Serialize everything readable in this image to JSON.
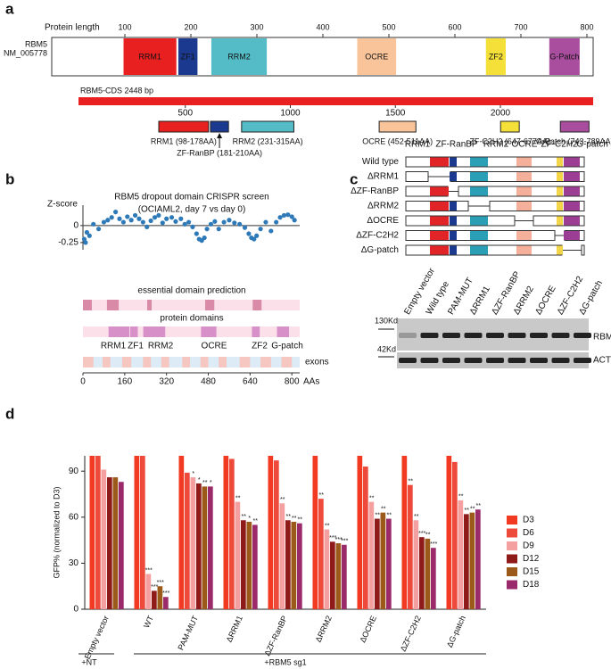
{
  "panel_labels": [
    "a",
    "b",
    "c",
    "d"
  ],
  "panel_a": {
    "axis_label": "Protein length",
    "ticks": [
      100,
      200,
      300,
      400,
      500,
      600,
      700,
      800
    ],
    "gene": "RBM5",
    "accession": "NM_005778",
    "cds_label": "RBM5-CDS  2448 bp",
    "cds_ticks": [
      500,
      1000,
      1500,
      2000
    ],
    "domains": [
      {
        "short": "RRM1",
        "label": "RRM1 (98-178AA)",
        "start": 98,
        "end": 178,
        "color": "#e8201f"
      },
      {
        "short": "ZF1",
        "label": "ZF-RanBP (181-210AA)",
        "start": 181,
        "end": 210,
        "color": "#1b3a8f"
      },
      {
        "short": "RRM2",
        "label": "RRM2 (231-315AA)",
        "start": 231,
        "end": 315,
        "color": "#54bcc6"
      },
      {
        "short": "OCRE",
        "label": "OCRE (452-511AA)",
        "start": 452,
        "end": 511,
        "color": "#f9c49a"
      },
      {
        "short": "ZF2",
        "label": "ZF-C2H2 (647-677AA)",
        "start": 647,
        "end": 677,
        "color": "#f5e03a"
      },
      {
        "short": "G-Patch",
        "label": "G-Patch (743-789AA)",
        "start": 743,
        "end": 789,
        "color": "#a94d9e"
      }
    ]
  },
  "panel_c": {
    "domain_headers": [
      "RRM1",
      "ZF-RanBP",
      "RRM2",
      "OCRE",
      "ZF-C2H2",
      "G-patch"
    ],
    "domain_colors": [
      "#e02428",
      "#1b3a8f",
      "#2a9fb5",
      "#f4b09a",
      "#f3d54a",
      "#9b3e94"
    ],
    "constructs": [
      {
        "name": "Wild type",
        "deleted": null
      },
      {
        "name": "ΔRRM1",
        "deleted": 0
      },
      {
        "name": "ΔZF-RanBP",
        "deleted": 1
      },
      {
        "name": "ΔRRM2",
        "deleted": 2
      },
      {
        "name": "ΔOCRE",
        "deleted": 3
      },
      {
        "name": "ΔZF-C2H2",
        "deleted": 4
      },
      {
        "name": "ΔG-patch",
        "deleted": 5
      }
    ],
    "lanes": [
      "Empty vector",
      "Wild type",
      "PAM-MUT",
      "ΔRRM1",
      "ΔZF-RanBP",
      "ΔRRM2",
      "ΔOCRE",
      "ΔZF-C2H2",
      "ΔG-patch"
    ],
    "markers": [
      "130Kd",
      "42Kd"
    ],
    "blots": [
      "RBM5",
      "ACTIN"
    ]
  },
  "chart_data": [
    {
      "type": "scatter",
      "title": "RBM5 dropout domain CRISPR screen",
      "subtitle": "(OCIAML2, day 7 vs day 0)",
      "y_label": "Z-score",
      "x_label": "AAs",
      "color": "#2e7ab8",
      "xlim": [
        0,
        830
      ],
      "ylim": [
        -0.33,
        0.3
      ],
      "xticks": [
        0,
        160,
        320,
        480,
        640,
        800
      ],
      "yticks": [
        0,
        -0.25
      ],
      "x": [
        5,
        10,
        15,
        25,
        40,
        60,
        80,
        95,
        110,
        125,
        140,
        155,
        170,
        185,
        200,
        215,
        230,
        245,
        260,
        275,
        290,
        305,
        320,
        340,
        355,
        375,
        390,
        405,
        420,
        435,
        445,
        455,
        465,
        475,
        490,
        505,
        520,
        540,
        560,
        580,
        600,
        620,
        635,
        645,
        655,
        665,
        680,
        700,
        720,
        740,
        755,
        770,
        785,
        800,
        810
      ],
      "values": [
        -0.2,
        -0.25,
        -0.1,
        -0.15,
        0.02,
        -0.05,
        0.05,
        0.08,
        0.12,
        0.2,
        0.1,
        0.05,
        0.13,
        0.08,
        0.15,
        0.1,
        0.05,
        -0.02,
        0.07,
        0.12,
        0.15,
        0.04,
        0.1,
        0.12,
        0.06,
        0.1,
        0.02,
        0.05,
        -0.02,
        -0.12,
        -0.2,
        -0.22,
        -0.18,
        -0.05,
        0.02,
        0.06,
        -0.05,
        0.05,
        0.08,
        0.04,
        0.02,
        -0.03,
        -0.12,
        -0.18,
        -0.2,
        -0.15,
        -0.05,
        0.05,
        -0.08,
        0.05,
        0.12,
        0.15,
        0.16,
        0.13,
        0.08
      ],
      "tracks": [
        {
          "name": "essential domain prediction",
          "color": "#d98aa6",
          "segments": [
            [
              0,
              34
            ],
            [
              92,
              137
            ],
            [
              246,
              263
            ],
            [
              468,
              503
            ],
            [
              650,
              684
            ]
          ]
        },
        {
          "name": "protein domains",
          "color": "#d890c8",
          "segments": [
            [
              98,
              178
            ],
            [
              181,
              210
            ],
            [
              231,
              315
            ],
            [
              452,
              511
            ],
            [
              647,
              677
            ],
            [
              743,
              789
            ]
          ]
        },
        {
          "name": "exons",
          "color": "#f6c6c0",
          "segments": [
            [
              0,
              40
            ],
            [
              75,
              105
            ],
            [
              150,
              185
            ],
            [
              230,
              260
            ],
            [
              300,
              330
            ],
            [
              380,
              410
            ],
            [
              450,
              480
            ],
            [
              520,
              550
            ],
            [
              600,
              640
            ],
            [
              680,
              720
            ],
            [
              760,
              800
            ]
          ]
        }
      ],
      "domain_names": [
        "RRM1",
        "ZF1",
        "RRM2",
        "OCRE",
        "ZF2",
        "G-patch"
      ]
    },
    {
      "type": "bar",
      "y_label": "GFP% (normalized to D3)",
      "categories": [
        "Empty vector",
        "WT",
        "PAM-MUT",
        "ΔRRM1",
        "ΔZF-RanBP",
        "ΔRRM2",
        "ΔOCRE",
        "ΔZF-C2H2",
        "ΔG-patch"
      ],
      "ylim": [
        0,
        100
      ],
      "yticks": [
        0,
        30,
        60,
        90
      ],
      "groups": [
        "+NT",
        "+RBM5 sg1"
      ],
      "series": [
        {
          "name": "D3",
          "color": "#f23a22",
          "values": [
            100,
            100,
            100,
            100,
            100,
            100,
            100,
            100,
            100
          ],
          "sig": [
            null,
            null,
            null,
            null,
            null,
            null,
            null,
            null,
            null
          ]
        },
        {
          "name": "D6",
          "color": "#ee4a3c",
          "values": [
            100,
            100,
            89,
            98,
            97,
            72,
            93,
            81,
            96
          ],
          "sig": [
            null,
            null,
            null,
            null,
            null,
            "**",
            null,
            "**",
            null
          ]
        },
        {
          "name": "D9",
          "color": "#f4a0a0",
          "values": [
            91,
            23,
            86,
            70,
            69,
            52,
            70,
            58,
            71
          ],
          "sig": [
            null,
            "***",
            "*",
            "**",
            "**",
            "**",
            "**",
            "**",
            "**"
          ]
        },
        {
          "name": "D12",
          "color": "#8e1a1a",
          "values": [
            86,
            12,
            82,
            58,
            58,
            44,
            59,
            47,
            62
          ],
          "sig": [
            null,
            "***",
            "*",
            "**",
            "**",
            "***",
            "**",
            "***",
            "**"
          ]
        },
        {
          "name": "D15",
          "color": "#9c5a1a",
          "values": [
            86,
            15,
            80,
            57,
            57,
            43,
            63,
            46,
            63
          ],
          "sig": [
            null,
            "***",
            "**",
            "*",
            "**",
            "***",
            "**",
            "**",
            "**"
          ]
        },
        {
          "name": "D18",
          "color": "#9b2a6a",
          "values": [
            83,
            8,
            80,
            55,
            56,
            42,
            59,
            40,
            65
          ],
          "sig": [
            null,
            "***",
            "*",
            "**",
            "**",
            "***",
            "**",
            "***",
            "**"
          ]
        }
      ]
    }
  ]
}
